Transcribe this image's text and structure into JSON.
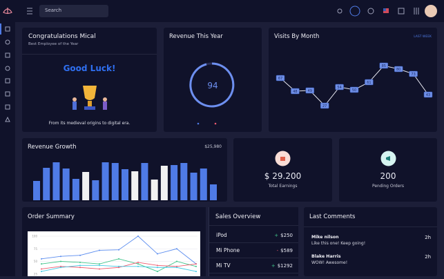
{
  "topbar": {
    "search_placeholder": "Search"
  },
  "congrats": {
    "title": "Congratulations Mical",
    "subtitle": "Best Employee of the Year",
    "headline": "Good Luck!",
    "text": "From its medieval origins to digital era."
  },
  "revenue_year": {
    "title": "Revenue This Year",
    "value": 94
  },
  "earnings": {
    "value": "$ 29.200",
    "label": "Total Earnings"
  },
  "pending": {
    "value": "200",
    "label": "Pending Orders"
  },
  "sales": {
    "title": "Sales Overview",
    "rows": [
      {
        "name": "iPod",
        "sign": "+",
        "amount": "$250"
      },
      {
        "name": "Mi Phone",
        "sign": "-",
        "amount": "$589"
      },
      {
        "name": "Mi TV",
        "sign": "+",
        "amount": "$1292"
      }
    ]
  },
  "comments": {
    "title": "Last Comments",
    "items": [
      {
        "name": "Mike nilson",
        "text": "Like this one! Keep going!",
        "time": "2h"
      },
      {
        "name": "Blake Harris",
        "text": "WOW! Awesome!",
        "time": "2h"
      }
    ]
  },
  "chart_data": [
    {
      "type": "line",
      "title": "Visits By Month",
      "filter": "LAST WEEK",
      "values": [
        67,
        48,
        49,
        27,
        54,
        50,
        61,
        85,
        80,
        73,
        43
      ],
      "ylim": [
        0,
        100
      ],
      "color": "#6f8fe6"
    },
    {
      "type": "bar",
      "title": "Revenue Growth",
      "total": "$25,980",
      "values": [
        28,
        47,
        55,
        46,
        31,
        41,
        29,
        55,
        54,
        45,
        42,
        54,
        30,
        50,
        51,
        54,
        40,
        46,
        23
      ],
      "colors": [
        "#4f7be6",
        "#4f7be6",
        "#4f7be6",
        "#4f7be6",
        "#4f7be6",
        "#f1f1f1",
        "#4f7be6",
        "#4f7be6",
        "#4f7be6",
        "#4f7be6",
        "#f1f1f1",
        "#4f7be6",
        "#f1f1f1",
        "#f1f1f1",
        "#4f7be6",
        "#4f7be6",
        "#4f7be6",
        "#4f7be6",
        "#4f7be6"
      ],
      "ylim": [
        0,
        60
      ]
    },
    {
      "type": "line",
      "title": "Order Summary",
      "ylim": [
        0,
        100
      ],
      "yticks": [
        25,
        50,
        75,
        100
      ],
      "grid": true,
      "series": [
        {
          "color": "#5b8def",
          "values": [
            55,
            60,
            62,
            72,
            73,
            100,
            65,
            75,
            45
          ]
        },
        {
          "color": "#3fc48a",
          "values": [
            45,
            50,
            48,
            45,
            55,
            45,
            30,
            50,
            40
          ]
        },
        {
          "color": "#ef5a6f",
          "values": [
            35,
            40,
            38,
            35,
            38,
            48,
            42,
            40,
            45
          ]
        },
        {
          "color": "#3fc8e4",
          "values": [
            30,
            38,
            42,
            42,
            40,
            40,
            38,
            38,
            30
          ]
        }
      ]
    }
  ]
}
